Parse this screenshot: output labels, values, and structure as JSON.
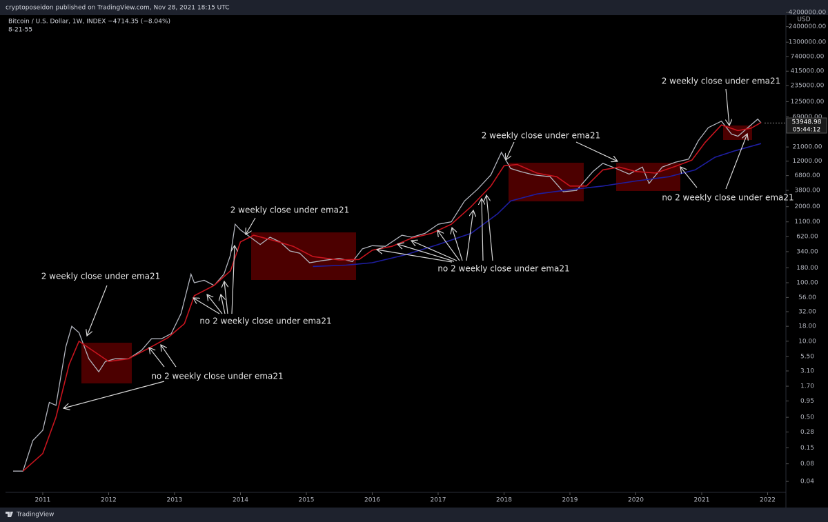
{
  "page": {
    "header": "cryptoposeidon published on TradingView.com, Nov 28, 2021 18:15 UTC",
    "footer": "TradingView"
  },
  "chart_data": {
    "type": "line",
    "title": "Bitcoin / U.S. Dollar, 1W, INDEX  −4714.35 (−8.04%)",
    "indicator": "8-21-55",
    "currency": "USD",
    "last_price": 53948.98,
    "countdown": "05:44:12",
    "yscale": "log",
    "grid": false,
    "xlim": [
      2010.435,
      2022.267
    ],
    "xticks": [
      2011,
      2012,
      2013,
      2014,
      2015,
      2016,
      2017,
      2018,
      2019,
      2020,
      2021,
      2022
    ],
    "ylim": [
      0.026,
      6850000
    ],
    "yticks": [
      {
        "value": 4200000,
        "label": "4200000.00"
      },
      {
        "value": 2400000,
        "label": "2400000.00"
      },
      {
        "value": 1300000,
        "label": "1300000.00"
      },
      {
        "value": 740000,
        "label": "740000.00"
      },
      {
        "value": 415000,
        "label": "415000.00"
      },
      {
        "value": 235000,
        "label": "235000.00"
      },
      {
        "value": 125000,
        "label": "125000.00"
      },
      {
        "value": 69000,
        "label": "69000.00"
      },
      {
        "value": 21000,
        "label": "21000.00"
      },
      {
        "value": 12000,
        "label": "12000.00"
      },
      {
        "value": 6800,
        "label": "6800.00"
      },
      {
        "value": 3800,
        "label": "3800.00"
      },
      {
        "value": 2000,
        "label": "2000.00"
      },
      {
        "value": 1100,
        "label": "1100.00"
      },
      {
        "value": 620,
        "label": "620.00"
      },
      {
        "value": 340,
        "label": "340.00"
      },
      {
        "value": 180,
        "label": "180.00"
      },
      {
        "value": 100,
        "label": "100.00"
      },
      {
        "value": 56,
        "label": "56.00"
      },
      {
        "value": 32,
        "label": "32.00"
      },
      {
        "value": 18,
        "label": "18.00"
      },
      {
        "value": 10,
        "label": "10.00"
      },
      {
        "value": 5.5,
        "label": "5.50"
      },
      {
        "value": 3.1,
        "label": "3.10"
      },
      {
        "value": 1.7,
        "label": "1.70"
      },
      {
        "value": 0.95,
        "label": "0.95"
      },
      {
        "value": 0.5,
        "label": "0.50"
      },
      {
        "value": 0.28,
        "label": "0.28"
      },
      {
        "value": 0.15,
        "label": "0.15"
      },
      {
        "value": 0.08,
        "label": "0.08"
      },
      {
        "value": 0.04,
        "label": "0.04"
      }
    ],
    "series": [
      {
        "color": "#b2b5be",
        "x": [
          2010.55,
          2010.7,
          2010.85,
          2011.0,
          2011.1,
          2011.2,
          2011.35,
          2011.44,
          2011.55,
          2011.7,
          2011.85,
          2011.95,
          2012.1,
          2012.3,
          2012.5,
          2012.65,
          2012.8,
          2012.95,
          2013.1,
          2013.25,
          2013.3,
          2013.45,
          2013.6,
          2013.75,
          2013.85,
          2013.92,
          2014.0,
          2014.15,
          2014.3,
          2014.45,
          2014.6,
          2014.75,
          2014.9,
          2015.05,
          2015.25,
          2015.5,
          2015.7,
          2015.85,
          2016.0,
          2016.2,
          2016.45,
          2016.6,
          2016.8,
          2017.0,
          2017.2,
          2017.4,
          2017.6,
          2017.8,
          2017.96,
          2018.1,
          2018.25,
          2018.45,
          2018.7,
          2018.9,
          2019.1,
          2019.35,
          2019.5,
          2019.7,
          2019.9,
          2020.1,
          2020.2,
          2020.4,
          2020.6,
          2020.8,
          2020.95,
          2021.1,
          2021.3,
          2021.45,
          2021.55,
          2021.7,
          2021.85,
          2021.9
        ],
        "values": [
          0.06,
          0.06,
          0.2,
          0.3,
          0.9,
          0.8,
          8,
          18,
          14,
          5,
          3,
          4.5,
          5,
          5,
          7,
          11,
          11,
          13.5,
          30,
          140,
          100,
          110,
          90,
          140,
          300,
          1000,
          800,
          600,
          450,
          600,
          500,
          350,
          320,
          220,
          240,
          260,
          230,
          380,
          430,
          420,
          650,
          600,
          700,
          1000,
          1100,
          2500,
          4000,
          7000,
          17000,
          9000,
          8000,
          7000,
          6500,
          3600,
          3800,
          8000,
          11000,
          9000,
          7200,
          9500,
          5000,
          9500,
          11500,
          13000,
          27000,
          45000,
          58000,
          35000,
          32000,
          45000,
          63000,
          54000
        ]
      },
      {
        "color": "#c8141e",
        "x": [
          2010.7,
          2011.0,
          2011.2,
          2011.4,
          2011.55,
          2011.75,
          2012.0,
          2012.3,
          2012.6,
          2012.9,
          2013.15,
          2013.3,
          2013.6,
          2013.85,
          2014.0,
          2014.2,
          2014.5,
          2014.8,
          2015.1,
          2015.5,
          2015.8,
          2016.0,
          2016.3,
          2016.6,
          2016.9,
          2017.2,
          2017.5,
          2017.8,
          2018.0,
          2018.2,
          2018.5,
          2018.8,
          2019.0,
          2019.25,
          2019.5,
          2019.75,
          2020.0,
          2020.3,
          2020.6,
          2020.85,
          2021.05,
          2021.3,
          2021.55,
          2021.75,
          2021.9
        ],
        "values": [
          0.06,
          0.12,
          0.5,
          4,
          10,
          7,
          4.5,
          5,
          7.5,
          11.5,
          20,
          60,
          90,
          160,
          500,
          650,
          530,
          420,
          280,
          245,
          250,
          360,
          420,
          580,
          700,
          1000,
          2000,
          4500,
          10000,
          10500,
          7500,
          6500,
          4500,
          4500,
          8500,
          9500,
          8000,
          7500,
          9800,
          12500,
          25000,
          50000,
          40000,
          44000,
          55000
        ]
      },
      {
        "color": "#1e1ea0",
        "x": [
          2015.1,
          2015.6,
          2016.0,
          2016.5,
          2017.0,
          2017.5,
          2017.9,
          2018.1,
          2018.5,
          2019.0,
          2019.5,
          2020.0,
          2020.5,
          2020.9,
          2021.2,
          2021.5,
          2021.9
        ],
        "values": [
          190,
          200,
          220,
          300,
          450,
          700,
          1500,
          2500,
          3300,
          3900,
          4500,
          5500,
          6500,
          8500,
          14000,
          18000,
          24000
        ]
      }
    ],
    "annotations": [
      "2 weekly close under ema21",
      "no 2 weekly close under ema21",
      "2 weekly close under ema21",
      "no 2 weekly close under ema21",
      "no 2 weekly close under ema21",
      "2 weekly close under ema21",
      "2 weekly close under ema21",
      "no 2 weekly close under ema21"
    ]
  }
}
